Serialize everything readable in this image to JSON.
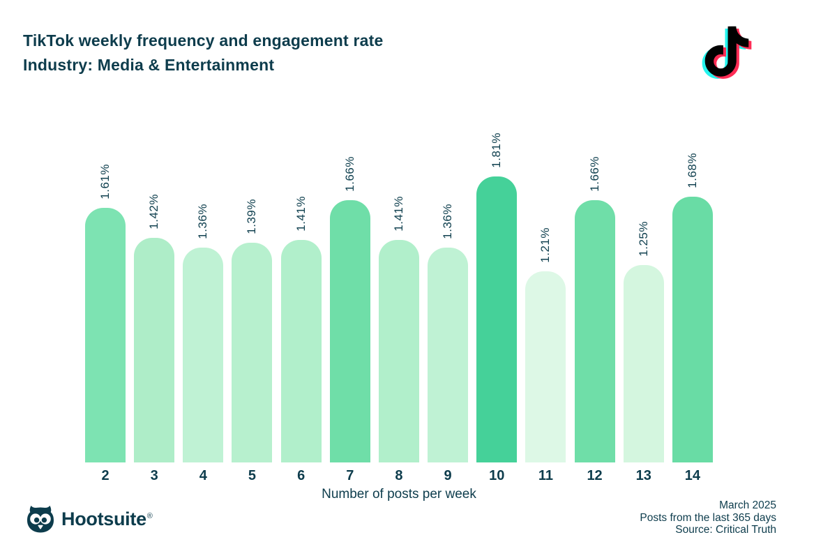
{
  "header": {
    "title": "TikTok weekly frequency and engagement rate",
    "subtitle": "Industry: Media & Entertainment"
  },
  "chart_data": {
    "type": "bar",
    "title": "TikTok weekly frequency and engagement rate",
    "subtitle": "Industry: Media & Entertainment",
    "categories": [
      "2",
      "3",
      "4",
      "5",
      "6",
      "7",
      "8",
      "9",
      "10",
      "11",
      "12",
      "13",
      "14"
    ],
    "values": [
      1.61,
      1.42,
      1.36,
      1.39,
      1.41,
      1.66,
      1.41,
      1.36,
      1.81,
      1.21,
      1.66,
      1.25,
      1.68
    ],
    "labels": [
      "1.61%",
      "1.42%",
      "1.36%",
      "1.39%",
      "1.41%",
      "1.66%",
      "1.41%",
      "1.36%",
      "1.81%",
      "1.21%",
      "1.66%",
      "1.25%",
      "1.68%"
    ],
    "bar_colors": [
      "#7de3b2",
      "#aeedc8",
      "#bff2d4",
      "#b7f0ce",
      "#b1efcb",
      "#6fdea8",
      "#b1efcb",
      "#bff2d4",
      "#45d199",
      "#ddf8e6",
      "#6fdea8",
      "#d4f6df",
      "#69dca5"
    ],
    "xlabel": "Number of posts per week",
    "ylabel": "",
    "ylim": [
      0,
      1.81
    ],
    "grid": false,
    "legend": null,
    "value_label_rotation": "vertical-bottom-to-top"
  },
  "footer": {
    "brand": "Hootsuite",
    "brand_mark": "®",
    "notes": [
      "March 2025",
      "Posts from the last 365 days",
      "Source: Critical Truth"
    ]
  },
  "colors": {
    "text": "#0d3c4c",
    "background": "#ffffff",
    "tiktok_cyan": "#25f4ee",
    "tiktok_pink": "#fe2c55",
    "tiktok_black": "#010101"
  }
}
